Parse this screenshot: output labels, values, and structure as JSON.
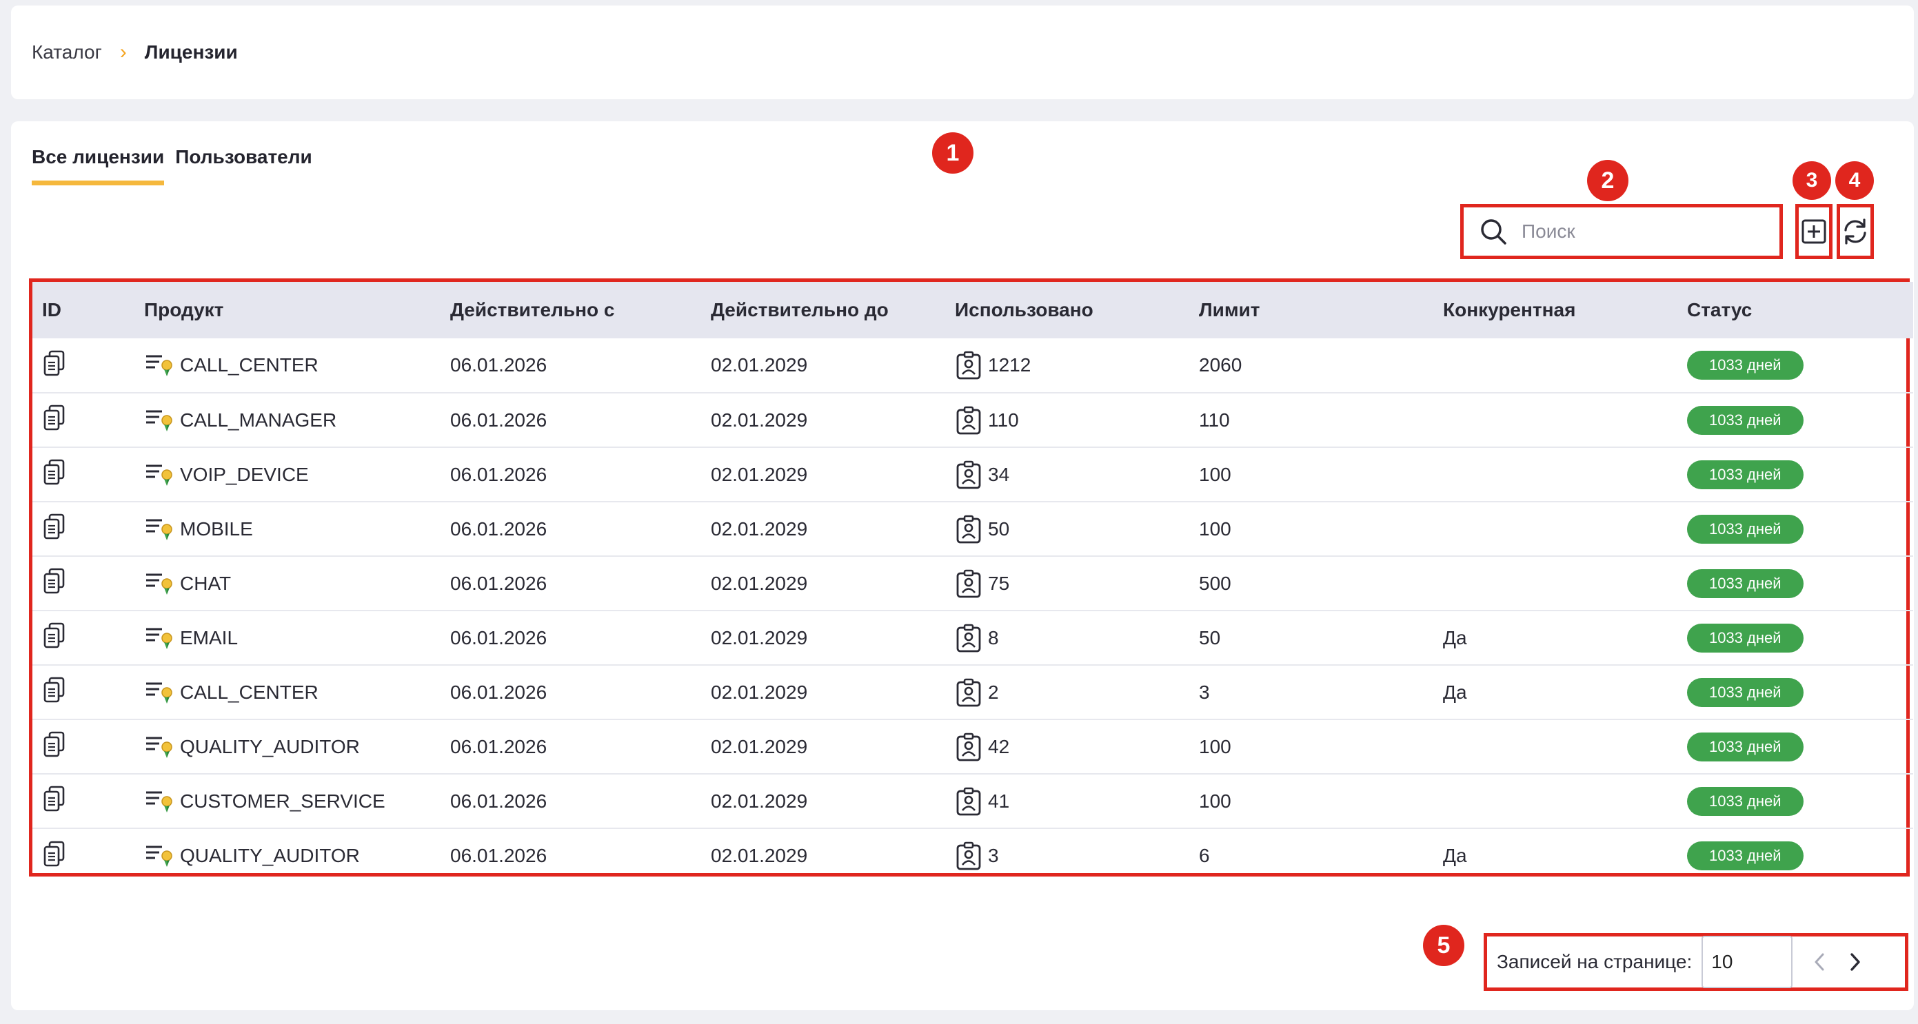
{
  "breadcrumb": {
    "root": "Каталог",
    "separator": "›",
    "current": "Лицензии"
  },
  "tabs": [
    {
      "label": "Все лицензии",
      "active": true
    },
    {
      "label": "Пользователи",
      "active": false
    }
  ],
  "search": {
    "placeholder": "Поиск",
    "value": ""
  },
  "annotations": {
    "m1": "1",
    "m2": "2",
    "m3": "3",
    "m4": "4",
    "m5": "5"
  },
  "table": {
    "columns": [
      "ID",
      "Продукт",
      "Действительно с",
      "Действительно до",
      "Использовано",
      "Лимит",
      "Конкурентная",
      "Статус"
    ],
    "rows": [
      {
        "product": "CALL_CENTER",
        "from": "06.01.2026",
        "to": "02.01.2029",
        "used": "1212",
        "limit": "2060",
        "concurrent": "",
        "status": "1033 дней"
      },
      {
        "product": "CALL_MANAGER",
        "from": "06.01.2026",
        "to": "02.01.2029",
        "used": "110",
        "limit": "110",
        "concurrent": "",
        "status": "1033 дней"
      },
      {
        "product": "VOIP_DEVICE",
        "from": "06.01.2026",
        "to": "02.01.2029",
        "used": "34",
        "limit": "100",
        "concurrent": "",
        "status": "1033 дней"
      },
      {
        "product": "MOBILE",
        "from": "06.01.2026",
        "to": "02.01.2029",
        "used": "50",
        "limit": "100",
        "concurrent": "",
        "status": "1033 дней"
      },
      {
        "product": "CHAT",
        "from": "06.01.2026",
        "to": "02.01.2029",
        "used": "75",
        "limit": "500",
        "concurrent": "",
        "status": "1033 дней"
      },
      {
        "product": "EMAIL",
        "from": "06.01.2026",
        "to": "02.01.2029",
        "used": "8",
        "limit": "50",
        "concurrent": "Да",
        "status": "1033 дней"
      },
      {
        "product": "CALL_CENTER",
        "from": "06.01.2026",
        "to": "02.01.2029",
        "used": "2",
        "limit": "3",
        "concurrent": "Да",
        "status": "1033 дней"
      },
      {
        "product": "QUALITY_AUDITOR",
        "from": "06.01.2026",
        "to": "02.01.2029",
        "used": "42",
        "limit": "100",
        "concurrent": "",
        "status": "1033 дней"
      },
      {
        "product": "CUSTOMER_SERVICE",
        "from": "06.01.2026",
        "to": "02.01.2029",
        "used": "41",
        "limit": "100",
        "concurrent": "",
        "status": "1033 дней"
      },
      {
        "product": "QUALITY_AUDITOR",
        "from": "06.01.2026",
        "to": "02.01.2029",
        "used": "3",
        "limit": "6",
        "concurrent": "Да",
        "status": "1033 дней"
      }
    ]
  },
  "pagination": {
    "label": "Записей на странице:",
    "value": "10"
  },
  "icons": {
    "search": "search-icon",
    "add": "add-square-icon",
    "refresh": "refresh-icon",
    "copy": "copy-icon",
    "product": "license-list-icon",
    "used": "user-badge-icon",
    "prev": "chevron-left-icon",
    "next": "chevron-right-icon"
  },
  "colors": {
    "accent": "#f5b83d",
    "status_green": "#3fa34d",
    "annotation_red": "#e0261e",
    "header_bg": "#e5e6ef"
  }
}
